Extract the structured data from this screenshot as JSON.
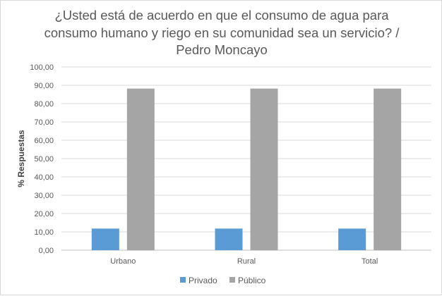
{
  "chart_data": {
    "type": "bar",
    "title": "¿Usted está de acuerdo en que el consumo de agua para consumo humano y riego en su comunidad sea un servicio? / Pedro Moncayo",
    "title_lines": [
      "¿Usted está de acuerdo en que el consumo de agua para",
      "consumo humano y riego en su comunidad sea un servicio? /",
      "Pedro Moncayo"
    ],
    "xlabel": "",
    "ylabel": "% Respuestas",
    "categories": [
      "Urbano",
      "Rural",
      "Total"
    ],
    "series": [
      {
        "name": "Privado",
        "color": "#5b9bd5",
        "values": [
          11.8,
          11.8,
          11.8
        ]
      },
      {
        "name": "Público",
        "color": "#a5a5a5",
        "values": [
          88.2,
          88.2,
          88.2
        ]
      }
    ],
    "ylim": [
      0,
      100
    ],
    "yticks": [
      "0,00",
      "10,00",
      "20,00",
      "30,00",
      "40,00",
      "50,00",
      "60,00",
      "70,00",
      "80,00",
      "90,00",
      "100,00"
    ],
    "grid": true,
    "legend_position": "bottom"
  }
}
